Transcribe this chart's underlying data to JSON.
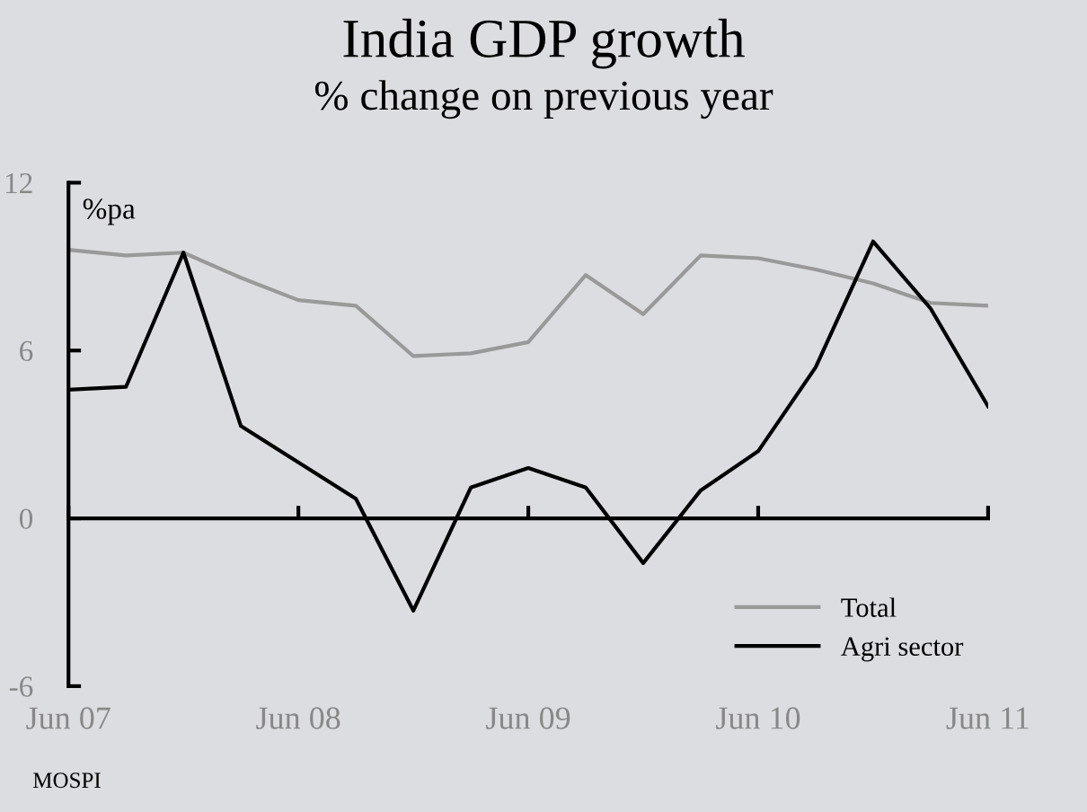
{
  "chart_data": {
    "type": "line",
    "title": "India GDP growth",
    "subtitle": "% change on previous year",
    "ylabel": "%pa",
    "categories": [
      "Jun 07",
      null,
      null,
      null,
      "Jun 08",
      null,
      null,
      null,
      "Jun 09",
      null,
      null,
      null,
      "Jun 10",
      null,
      null,
      null,
      "Jun 11"
    ],
    "series": [
      {
        "name": "Total",
        "color": "#999999",
        "values": [
          9.6,
          9.4,
          9.5,
          8.6,
          7.8,
          7.6,
          5.8,
          5.9,
          6.3,
          8.7,
          7.3,
          9.4,
          9.3,
          8.9,
          8.4,
          7.7,
          7.6
        ]
      },
      {
        "name": "Agri sector",
        "color": "#000000",
        "values": [
          4.6,
          4.7,
          9.5,
          3.3,
          2.0,
          0.7,
          -3.3,
          1.1,
          1.8,
          1.1,
          -1.6,
          1.0,
          2.4,
          5.4,
          9.9,
          7.5,
          4.0
        ]
      }
    ],
    "ylim": [
      -6,
      12
    ],
    "yticks": [
      -6,
      0,
      6,
      12
    ],
    "legend": "bottom right",
    "marker": "none",
    "line_style": "solid",
    "annotations": [
      "MOSPI"
    ]
  }
}
